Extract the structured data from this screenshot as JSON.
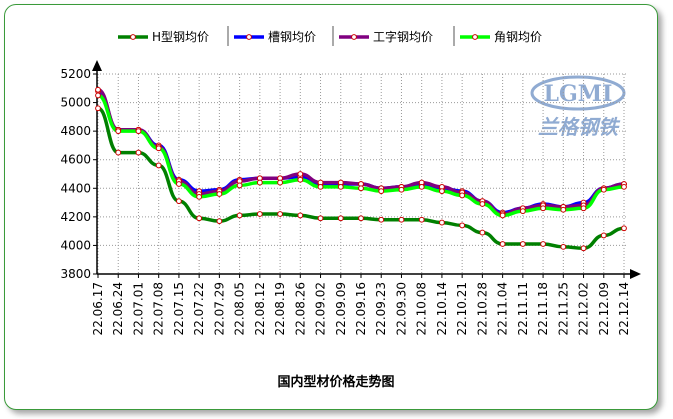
{
  "chart_data": {
    "type": "line",
    "title": "国内型材价格走势图",
    "xlabel": "",
    "ylabel": "",
    "ylim": [
      3800,
      5200
    ],
    "yticks": [
      3800,
      4000,
      4200,
      4400,
      4600,
      4800,
      5000,
      5200
    ],
    "grid": true,
    "legend_position": "top",
    "x": [
      "22.06.17",
      "22.06.24",
      "22.07.01",
      "22.07.08",
      "22.07.15",
      "22.07.22",
      "22.07.29",
      "22.08.05",
      "22.08.12",
      "22.08.19",
      "22.08.26",
      "22.09.02",
      "22.09.09",
      "22.09.16",
      "22.09.23",
      "22.09.30",
      "22.10.08",
      "22.10.14",
      "22.10.21",
      "22.10.28",
      "22.11.04",
      "22.11.11",
      "22.11.18",
      "22.11.25",
      "22.12.02",
      "22.12.09",
      "22.12.14"
    ],
    "series": [
      {
        "name": "H型钢均价",
        "color": "#008000",
        "values": [
          4960,
          4650,
          4650,
          4560,
          4310,
          4190,
          4170,
          4210,
          4220,
          4220,
          4210,
          4190,
          4190,
          4190,
          4180,
          4180,
          4180,
          4160,
          4140,
          4090,
          4010,
          4010,
          4010,
          3990,
          3980,
          4070,
          4120
        ]
      },
      {
        "name": "槽钢均价",
        "color": "#0000ff",
        "values": [
          5080,
          4810,
          4810,
          4700,
          4460,
          4380,
          4390,
          4460,
          4470,
          4470,
          4480,
          4430,
          4430,
          4430,
          4400,
          4410,
          4420,
          4400,
          4380,
          4310,
          4230,
          4260,
          4290,
          4270,
          4300,
          4400,
          4430
        ]
      },
      {
        "name": "工字钢均价",
        "color": "#800080",
        "values": [
          5090,
          4810,
          4810,
          4690,
          4450,
          4360,
          4380,
          4450,
          4470,
          4470,
          4500,
          4440,
          4440,
          4430,
          4400,
          4410,
          4440,
          4410,
          4370,
          4310,
          4220,
          4260,
          4280,
          4270,
          4280,
          4400,
          4430
        ]
      },
      {
        "name": "角钢均价",
        "color": "#00ff00",
        "values": [
          5050,
          4800,
          4800,
          4680,
          4430,
          4340,
          4360,
          4420,
          4440,
          4440,
          4460,
          4410,
          4410,
          4400,
          4380,
          4390,
          4410,
          4380,
          4350,
          4290,
          4210,
          4240,
          4260,
          4250,
          4260,
          4390,
          4410
        ]
      }
    ]
  },
  "watermark": {
    "logo_text": "LGMI",
    "caption": "兰格钢铁",
    "color": "#6b8fc4"
  },
  "colors": {
    "frame": "#3a9a3a",
    "grid": "#999999",
    "marker_fill": "#ffffff",
    "marker_stroke": "#cc0000"
  }
}
